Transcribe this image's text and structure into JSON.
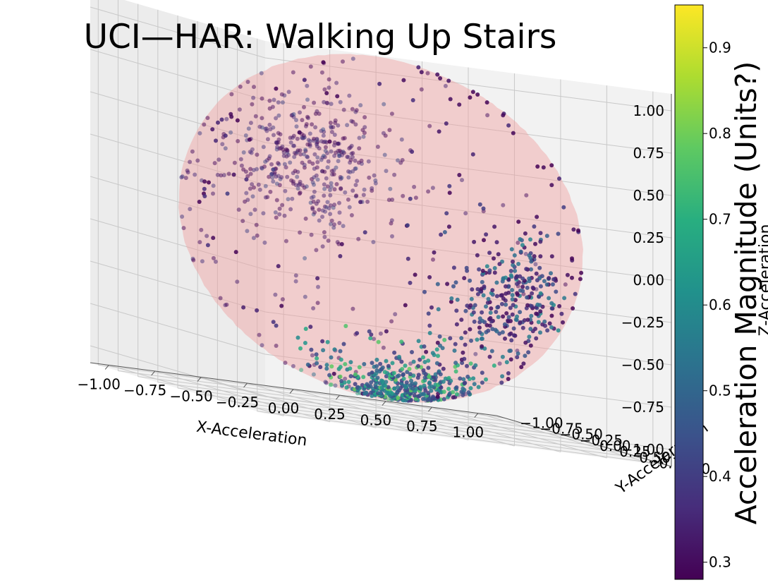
{
  "chart_data": {
    "type": "scatter",
    "projection": "3d",
    "title": "UCI—HAR: Walking Up Stairs",
    "xlabel": "X-Acceleration",
    "ylabel": "Y-Acceleration",
    "zlabel": "Z-Acceleration",
    "xlim": [
      -1.1,
      1.1
    ],
    "ylim": [
      -1.1,
      1.1
    ],
    "zlim": [
      -1.1,
      1.1
    ],
    "xticks": [
      "−1.00",
      "−0.75",
      "−0.50",
      "−0.25",
      "0.00",
      "0.25",
      "0.50",
      "0.75",
      "1.00"
    ],
    "yticks": [
      "−1.00",
      "−0.75",
      "−0.50",
      "−0.25",
      "0.00",
      "0.25",
      "0.50",
      "0.75",
      "1.00"
    ],
    "zticks": [
      "−1.00",
      "−0.75",
      "−0.50",
      "−0.25",
      "0.00",
      "0.25",
      "0.50",
      "0.75",
      "1.00"
    ],
    "tick_values": [
      -1.0,
      -0.75,
      -0.5,
      -0.25,
      0.0,
      0.25,
      0.5,
      0.75,
      1.0
    ],
    "grid": true,
    "sphere": {
      "radius": 1.0,
      "color": "#f0a0a0",
      "alpha": 0.45
    },
    "colorbar": {
      "label": "Acceleration Magnitude (Units?)",
      "colormap": "viridis",
      "range": [
        0.28,
        0.95
      ],
      "ticks": [
        "0.3",
        "0.4",
        "0.5",
        "0.6",
        "0.7",
        "0.8",
        "0.9"
      ],
      "tick_values": [
        0.3,
        0.4,
        0.5,
        0.6,
        0.7,
        0.8,
        0.9
      ]
    },
    "points": {
      "count": 1400,
      "on_surface": "unit sphere",
      "clusters": [
        {
          "center": [
            -0.6,
            0.55,
            0.35
          ],
          "spread": 0.55,
          "share": 0.3,
          "magnitude_range": [
            0.28,
            0.45
          ]
        },
        {
          "center": [
            0.2,
            -0.2,
            -0.75
          ],
          "spread": 0.45,
          "share": 0.3,
          "magnitude_range": [
            0.4,
            0.8
          ]
        },
        {
          "center": [
            0.75,
            -0.3,
            -0.3
          ],
          "spread": 0.5,
          "share": 0.22,
          "magnitude_range": [
            0.3,
            0.6
          ]
        },
        {
          "center": [
            0.0,
            0.0,
            0.0
          ],
          "spread": 1.0,
          "share": 0.18,
          "magnitude_range": [
            0.28,
            0.4
          ]
        }
      ]
    },
    "colors": {
      "pane_left": "#ececec",
      "pane_right": "#f2f2f2",
      "pane_floor": "#f2f2f2",
      "grid": "#c8c8c8"
    }
  }
}
